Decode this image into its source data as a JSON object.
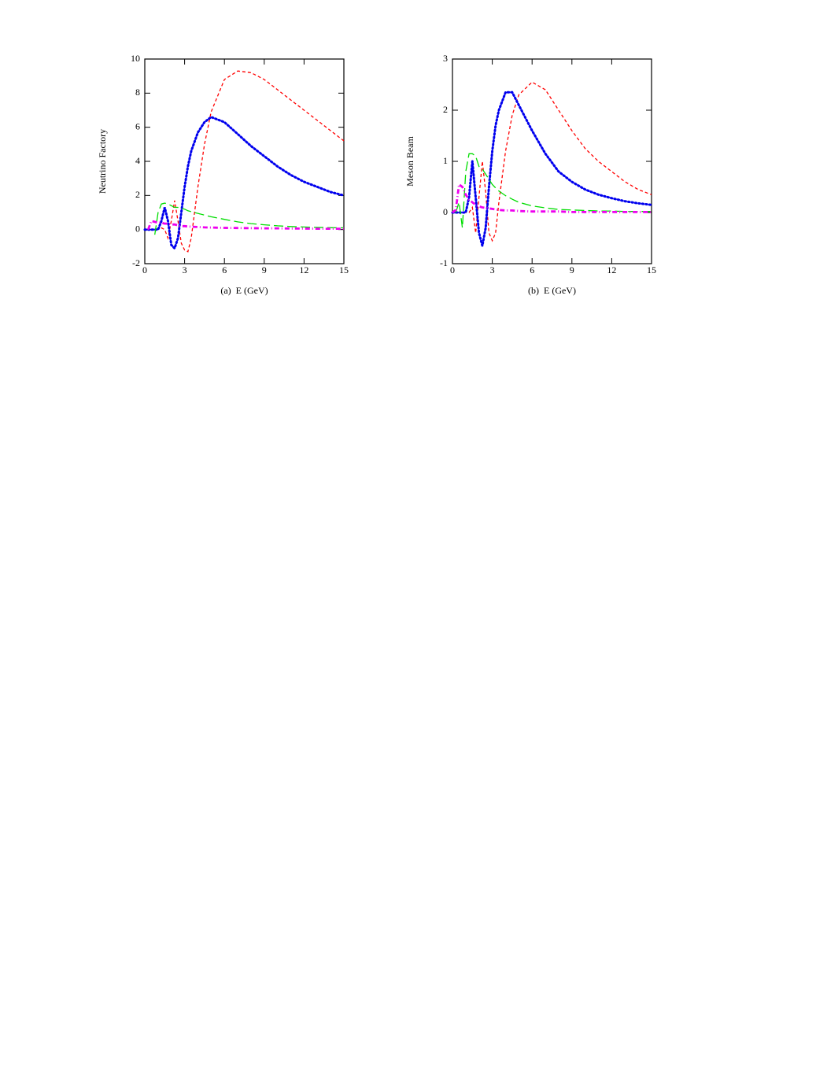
{
  "chart_data": [
    {
      "type": "line",
      "ylabel": "Neutrino Factory",
      "xlabel": "(a)  E (GeV)",
      "x": [
        0,
        0.25,
        0.5,
        0.75,
        1,
        1.25,
        1.5,
        1.75,
        2,
        2.25,
        2.5,
        2.75,
        3,
        3.25,
        3.5,
        4,
        4.5,
        5,
        6,
        7,
        8,
        9,
        10,
        11,
        12,
        13,
        14,
        15
      ],
      "xlim": [
        0,
        15
      ],
      "xticks": [
        0,
        3,
        6,
        9,
        12,
        15
      ],
      "ylim": [
        -2,
        10
      ],
      "yticks": [
        -2,
        0,
        2,
        4,
        6,
        8,
        10
      ],
      "series": [
        {
          "color": "#ff0000",
          "dash": "dashed",
          "values": [
            0,
            0,
            0,
            0,
            0.05,
            0.1,
            0,
            -0.5,
            0.5,
            1.7,
            0.5,
            -0.8,
            -1.2,
            -1.3,
            -0.5,
            2.5,
            5,
            6.9,
            8.8,
            9.3,
            9.2,
            8.8,
            8.2,
            7.6,
            7,
            6.4,
            5.8,
            5.2
          ]
        },
        {
          "color": "#0000ee",
          "dash": "dotted",
          "values": [
            0,
            0,
            0,
            0,
            0,
            0.5,
            1.3,
            0.5,
            -0.9,
            -1.1,
            -0.5,
            1,
            2.5,
            3.7,
            4.6,
            5.7,
            6.3,
            6.6,
            6.3,
            5.6,
            4.9,
            4.3,
            3.7,
            3.2,
            2.8,
            2.5,
            2.2,
            2.0
          ]
        },
        {
          "color": "#00dd00",
          "dash": "long-dashed",
          "values": [
            null,
            null,
            null,
            -0.3,
            1.0,
            1.5,
            1.55,
            1.5,
            1.4,
            1.3,
            1.3,
            1.25,
            1.2,
            1.1,
            1.05,
            0.95,
            0.85,
            0.75,
            0.6,
            0.45,
            0.35,
            0.28,
            0.22,
            0.18,
            0.15,
            0.13,
            0.11,
            0.1
          ]
        },
        {
          "color": "#ee00ee",
          "dash": "dash-dot",
          "values": [
            null,
            0,
            0.5,
            0.45,
            0.4,
            0.4,
            0.35,
            0.35,
            0.3,
            0.3,
            0.25,
            0.2,
            0.2,
            0.18,
            0.17,
            0.15,
            0.13,
            0.12,
            0.1,
            0.09,
            0.08,
            0.07,
            0.07,
            0.06,
            0.06,
            0.05,
            0.05,
            0.05
          ]
        }
      ]
    },
    {
      "type": "line",
      "ylabel": "Meson Beam",
      "xlabel": "(b)  E (GeV)",
      "x": [
        0,
        0.25,
        0.5,
        0.75,
        1,
        1.25,
        1.5,
        1.75,
        2,
        2.25,
        2.5,
        2.75,
        3,
        3.25,
        3.5,
        4,
        4.5,
        5,
        6,
        7,
        8,
        9,
        10,
        11,
        12,
        13,
        14,
        15
      ],
      "xlim": [
        0,
        15
      ],
      "xticks": [
        0,
        3,
        6,
        9,
        12,
        15
      ],
      "ylim": [
        -1,
        3
      ],
      "yticks": [
        -1,
        0,
        1,
        2,
        3
      ],
      "series": [
        {
          "color": "#ff0000",
          "dash": "dashed",
          "values": [
            0,
            0,
            0,
            0,
            0,
            0,
            0.1,
            -0.4,
            0.3,
            1.0,
            0.4,
            -0.4,
            -0.55,
            -0.4,
            0.2,
            1.2,
            1.9,
            2.3,
            2.55,
            2.4,
            2.0,
            1.6,
            1.25,
            1.0,
            0.8,
            0.6,
            0.45,
            0.35
          ]
        },
        {
          "color": "#0000ee",
          "dash": "dotted",
          "values": [
            0,
            0,
            0,
            0,
            0,
            0.3,
            1.0,
            0.3,
            -0.4,
            -0.65,
            -0.3,
            0.5,
            1.2,
            1.7,
            2.0,
            2.35,
            2.35,
            2.1,
            1.6,
            1.15,
            0.8,
            0.6,
            0.45,
            0.35,
            0.28,
            0.22,
            0.18,
            0.15
          ]
        },
        {
          "color": "#00dd00",
          "dash": "long-dashed",
          "values": [
            null,
            0,
            0.2,
            -0.3,
            0.8,
            1.15,
            1.15,
            1.1,
            0.9,
            0.85,
            0.75,
            0.65,
            0.55,
            0.48,
            0.42,
            0.33,
            0.26,
            0.2,
            0.13,
            0.09,
            0.06,
            0.05,
            0.04,
            0.03,
            0.03,
            0.02,
            0.02,
            0.02
          ]
        },
        {
          "color": "#ee00ee",
          "dash": "dash-dot",
          "values": [
            0,
            0.05,
            0.55,
            0.5,
            0.35,
            0.25,
            0.2,
            0.15,
            0.12,
            0.1,
            0.09,
            0.08,
            0.07,
            0.06,
            0.05,
            0.04,
            0.04,
            0.03,
            0.02,
            0.02,
            0.02,
            0.01,
            0.01,
            0.01,
            0.01,
            0.01,
            0.01,
            0.01
          ]
        }
      ]
    }
  ]
}
